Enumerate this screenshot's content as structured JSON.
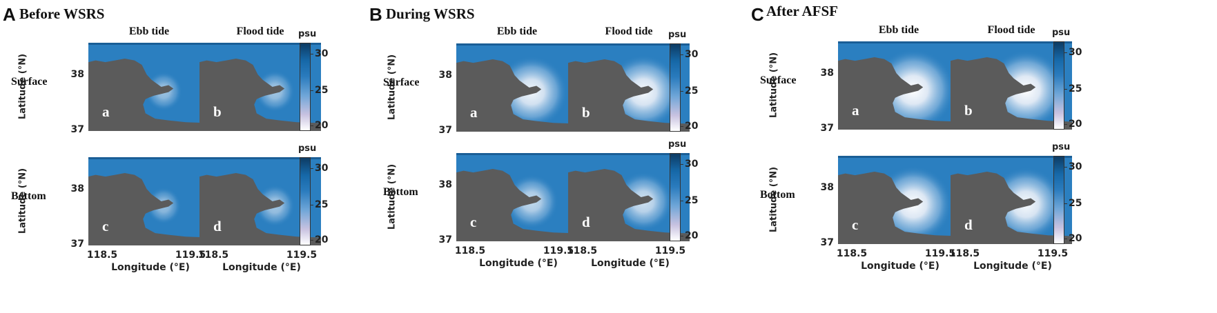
{
  "figure": {
    "panels": [
      {
        "letter": "A",
        "title": "Before WSRS",
        "col1": "Ebb tide",
        "col2": "Flood tide",
        "row1": "Surface",
        "row2": "Bottom",
        "plume": [
          0.15,
          0.2,
          0.1,
          0.2
        ]
      },
      {
        "letter": "B",
        "title": "During WSRS",
        "col1": "Ebb tide",
        "col2": "Flood tide",
        "row1": "Surface",
        "row2": "Bottom",
        "plume": [
          0.8,
          0.85,
          0.45,
          0.55
        ]
      },
      {
        "letter": "C",
        "title": "After AFSF",
        "col1": "Ebb tide",
        "col2": "Flood tide",
        "row1": "Surface",
        "row2": "Bottom",
        "plume": [
          1.0,
          0.95,
          0.9,
          0.85
        ]
      }
    ],
    "sublabels": [
      "a",
      "b",
      "c",
      "d"
    ],
    "ylabel": "Latitude (°N)",
    "xlabel": "Longitude (°E)",
    "yticks": [
      "38",
      "37"
    ],
    "xticks": [
      "118.5",
      "119.5"
    ],
    "colorbar": {
      "title": "psu",
      "ticks": [
        "30",
        "25",
        "20"
      ]
    },
    "colors": {
      "land": "#5b5b5b",
      "sea": "#2b7fc0",
      "fresh": "#ffffff"
    }
  },
  "chart_data": {
    "type": "heatmap",
    "description_quantity": "salinity",
    "colorbar_label": "psu",
    "colorbar_range": [
      20,
      32
    ],
    "colorbar_ticks": [
      20,
      25,
      30
    ],
    "xlabel": "Longitude (°E)",
    "ylabel": "Latitude (°N)",
    "xticks": [
      118.5,
      119.5
    ],
    "yticks": [
      37,
      38
    ],
    "panels": [
      "Before WSRS",
      "During WSRS",
      "After AFSF"
    ],
    "columns": [
      "Ebb tide",
      "Flood tide"
    ],
    "rows": [
      "Surface",
      "Bottom"
    ]
  }
}
